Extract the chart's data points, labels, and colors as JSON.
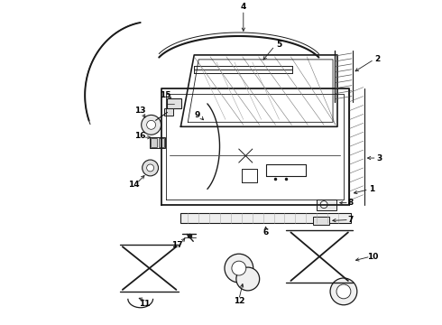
{
  "bg_color": "#ffffff",
  "line_color": "#1a1a1a",
  "fig_width": 4.9,
  "fig_height": 3.6,
  "dpi": 100,
  "text_color": "#000000"
}
